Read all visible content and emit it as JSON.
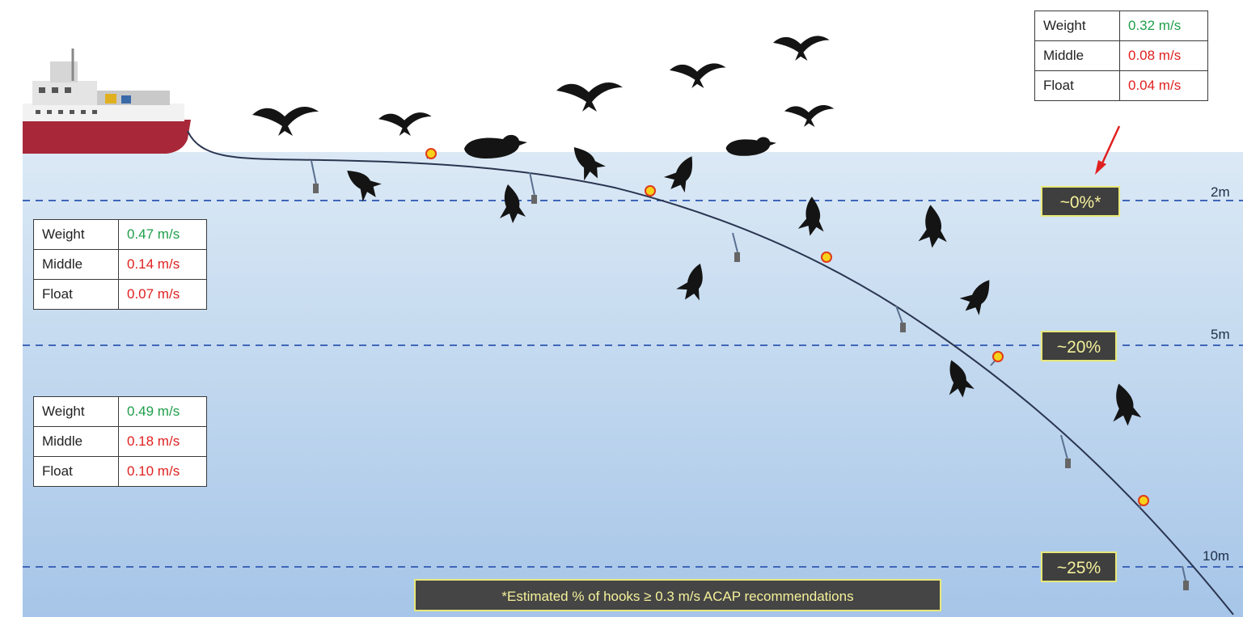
{
  "colors": {
    "water_top": "#d6e6f4",
    "water_bottom": "#a9c7e8",
    "depth_line": "#3f66b8",
    "good": "#1f9e4a",
    "bad": "#e02020",
    "tag_text": "#f4f19a",
    "tag_border": "#e8e879",
    "arrow": "#e02020"
  },
  "icons": [
    "fishing-vessel-icon",
    "seabird-icon",
    "float-buoy-icon",
    "weight-sinker-icon"
  ],
  "depth_lines": [
    {
      "label": "2m",
      "percent": "~0%*"
    },
    {
      "label": "5m",
      "percent": "~20%"
    },
    {
      "label": "10m",
      "percent": "~25%"
    }
  ],
  "speed_tables": {
    "surface": [
      {
        "label": "Weight",
        "value": "0.32 m/s",
        "status": "good"
      },
      {
        "label": "Middle",
        "value": "0.08 m/s",
        "status": "bad"
      },
      {
        "label": "Float",
        "value": "0.04 m/s",
        "status": "bad"
      }
    ],
    "depth_2_5": [
      {
        "label": "Weight",
        "value": "0.47 m/s",
        "status": "good"
      },
      {
        "label": "Middle",
        "value": "0.14 m/s",
        "status": "bad"
      },
      {
        "label": "Float",
        "value": "0.07 m/s",
        "status": "bad"
      }
    ],
    "depth_5_10": [
      {
        "label": "Weight",
        "value": "0.49 m/s",
        "status": "good"
      },
      {
        "label": "Middle",
        "value": "0.18 m/s",
        "status": "bad"
      },
      {
        "label": "Float",
        "value": "0.10 m/s",
        "status": "bad"
      }
    ]
  },
  "footnote": "*Estimated % of hooks ≥ 0.3 m/s ACAP recommendations"
}
